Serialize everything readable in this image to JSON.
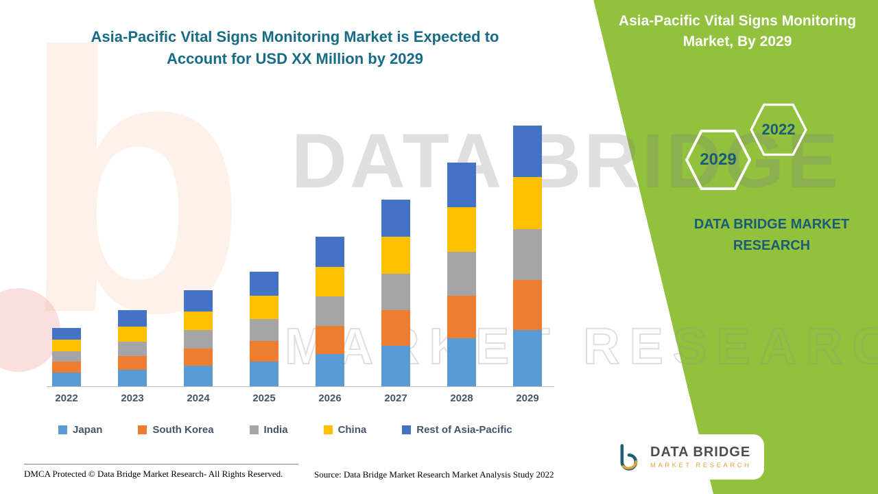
{
  "colors": {
    "panel_green": "#92C13E",
    "title_teal": "#176B86",
    "panel_text_teal": "#1A5C74",
    "axis_gray": "#BFBFBF",
    "label_gray": "#44546A",
    "logo_orange": "#E2A23B"
  },
  "header": {
    "left_title_line1": "Asia-Pacific Vital Signs Monitoring Market is Expected to",
    "left_title_line2": "Account for USD XX Million by 2029",
    "right_title_line1": "Asia-Pacific Vital Signs Monitoring",
    "right_title_line2": "Market, By 2029"
  },
  "panel": {
    "hexagon_left_label": "2029",
    "hexagon_right_label": "2022",
    "brand_line1": "DATA BRIDGE MARKET",
    "brand_line2": "RESEARCH"
  },
  "watermark": {
    "line1": "DATA BRIDGE",
    "line2": "MARKET RESEARCH",
    "logo_glyph": "b"
  },
  "logo": {
    "title": "DATA BRIDGE",
    "subtitle": "MARKET RESEARCH"
  },
  "footer": {
    "dmca": "DMCA Protected © Data Bridge Market Research- All Rights Reserved.",
    "source": "Source: Data Bridge Market Research Market Analysis Study 2022"
  },
  "chart_data": {
    "type": "bar",
    "stacked": true,
    "title": "Asia-Pacific Vital Signs Monitoring Market is Expected to Account for USD XX Million by 2029",
    "categories": [
      "2022",
      "2023",
      "2024",
      "2025",
      "2026",
      "2027",
      "2028",
      "2029"
    ],
    "series": [
      {
        "name": "Japan",
        "color": "#5B9BD5",
        "values": [
          20,
          24,
          30,
          36,
          47,
          59,
          70,
          82
        ]
      },
      {
        "name": "South Korea",
        "color": "#ED7D31",
        "values": [
          16,
          20,
          25,
          30,
          41,
          52,
          62,
          73
        ]
      },
      {
        "name": "India",
        "color": "#A5A5A5",
        "values": [
          15,
          21,
          27,
          32,
          43,
          53,
          64,
          74
        ]
      },
      {
        "name": "China",
        "color": "#FFC000",
        "values": [
          17,
          22,
          27,
          34,
          43,
          54,
          65,
          76
        ]
      },
      {
        "name": "Rest of Asia-Pacific",
        "color": "#4472C4",
        "values": [
          17,
          24,
          31,
          35,
          44,
          54,
          65,
          75
        ]
      }
    ],
    "totals": [
      85,
      111,
      140,
      167,
      218,
      272,
      326,
      380
    ],
    "xlabel": "",
    "ylabel": "",
    "ylim": [
      0,
      400
    ],
    "y_axis_visible": false,
    "grid": false,
    "legend_position": "bottom",
    "note": "No y-axis values are shown in the figure; series values are relative estimates of segment heights."
  }
}
